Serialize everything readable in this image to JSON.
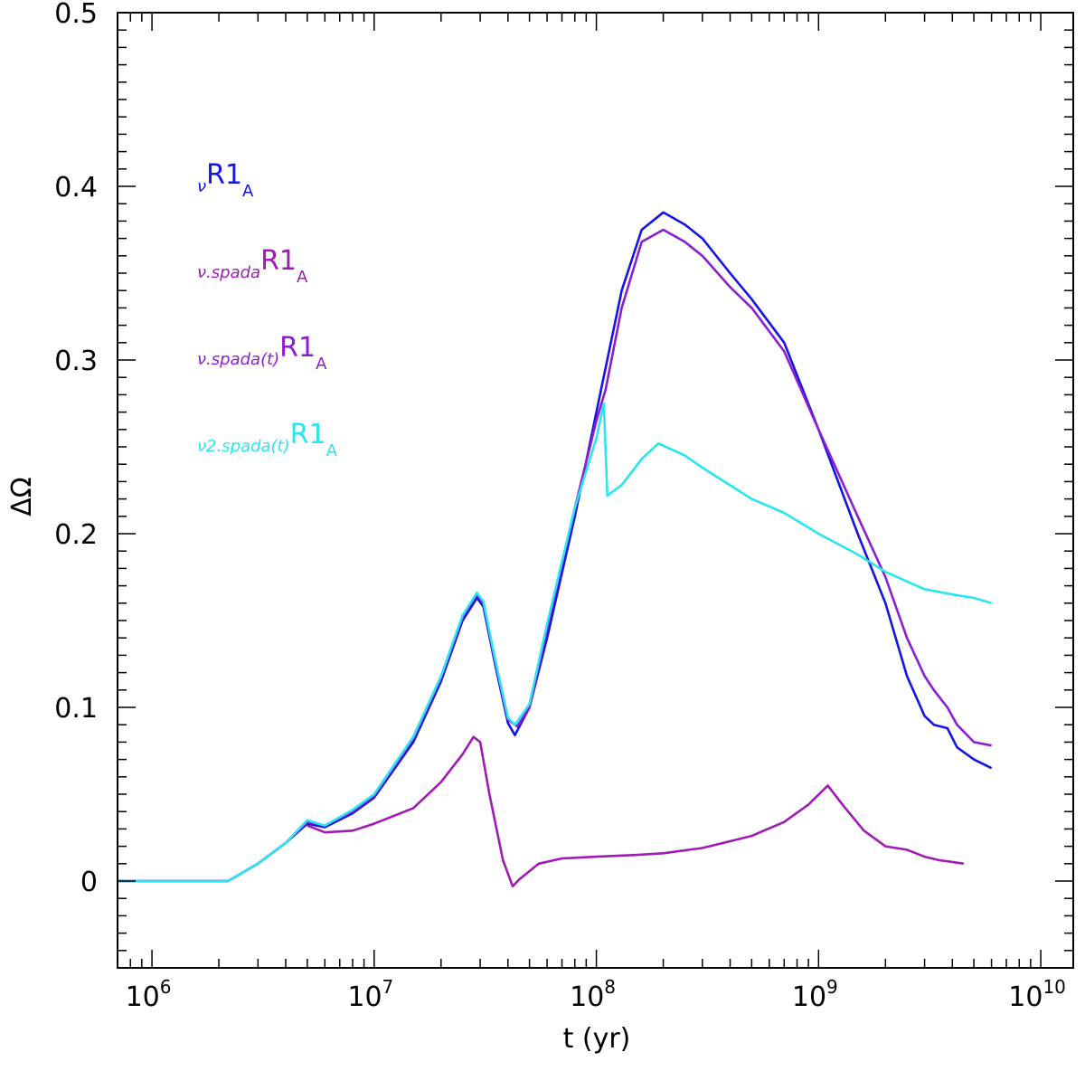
{
  "chart_data": {
    "type": "line",
    "title": "",
    "xlabel": "t  (yr)",
    "ylabel": "ΔΩ",
    "xscale": "log",
    "xlim": [
      700000,
      14000000000
    ],
    "ylim": [
      -0.05,
      0.5
    ],
    "x_ticks": [
      {
        "value": 1000000,
        "base": "10",
        "exp": "6"
      },
      {
        "value": 10000000,
        "base": "10",
        "exp": "7"
      },
      {
        "value": 100000000,
        "base": "10",
        "exp": "8"
      },
      {
        "value": 1000000000,
        "base": "10",
        "exp": "9"
      },
      {
        "value": 10000000000,
        "base": "10",
        "exp": "10"
      }
    ],
    "y_ticks": [
      {
        "value": 0,
        "label": "0"
      },
      {
        "value": 0.1,
        "label": "0.1"
      },
      {
        "value": 0.2,
        "label": "0.2"
      },
      {
        "value": 0.3,
        "label": "0.3"
      },
      {
        "value": 0.4,
        "label": "0.4"
      },
      {
        "value": 0.5,
        "label": "0.5"
      }
    ],
    "legend": [
      {
        "prefix": "ν",
        "main": "R1",
        "sub": "A",
        "color": "#1414e6"
      },
      {
        "prefix": "ν.spada",
        "main": "R1",
        "sub": "A",
        "color": "#a01ab4"
      },
      {
        "prefix": "ν.spada(t)",
        "main": "R1",
        "sub": "A",
        "color": "#8c1ed2"
      },
      {
        "prefix": "ν2.spada(t)",
        "main": "R1",
        "sub": "A",
        "color": "#28e6f0"
      }
    ],
    "series": [
      {
        "name": "ν R1_A",
        "color": "#1414e6",
        "x": [
          700000,
          2200000,
          3000000,
          4000000,
          5000000,
          6000000,
          8000000,
          10000000,
          15000000,
          20000000,
          25000000,
          29000000,
          31000000,
          35000000,
          40000000,
          43000000,
          50000000,
          60000000,
          80000000,
          100000000,
          130000000,
          160000000,
          200000000,
          250000000,
          300000000,
          400000000,
          500000000,
          700000000,
          1000000000,
          1500000000,
          2000000000,
          2500000000,
          3000000000,
          3300000000,
          3800000000,
          4200000000,
          5000000000,
          6000000000
        ],
        "y": [
          0,
          0,
          0.01,
          0.022,
          0.033,
          0.031,
          0.039,
          0.048,
          0.08,
          0.115,
          0.15,
          0.163,
          0.158,
          0.125,
          0.091,
          0.084,
          0.1,
          0.14,
          0.21,
          0.27,
          0.34,
          0.375,
          0.385,
          0.378,
          0.37,
          0.35,
          0.335,
          0.31,
          0.26,
          0.2,
          0.16,
          0.118,
          0.095,
          0.09,
          0.088,
          0.077,
          0.07,
          0.065
        ]
      },
      {
        "name": "ν.spada R1_A",
        "color": "#a01ab4",
        "x": [
          5000000,
          6000000,
          8000000,
          10000000,
          15000000,
          20000000,
          25000000,
          28000000,
          30000000,
          33000000,
          38000000,
          42000000,
          45000000,
          55000000,
          70000000,
          100000000,
          150000000,
          200000000,
          300000000,
          500000000,
          700000000,
          900000000,
          1100000000,
          1300000000,
          1600000000,
          2000000000,
          2500000000,
          3000000000,
          3500000000,
          4000000000,
          4500000000
        ],
        "y": [
          0.032,
          0.028,
          0.029,
          0.033,
          0.042,
          0.057,
          0.073,
          0.083,
          0.08,
          0.05,
          0.012,
          -0.003,
          0.001,
          0.01,
          0.013,
          0.014,
          0.015,
          0.016,
          0.019,
          0.026,
          0.034,
          0.044,
          0.055,
          0.043,
          0.029,
          0.02,
          0.018,
          0.014,
          0.012,
          0.011,
          0.01
        ]
      },
      {
        "name": "ν.spada(t) R1_A",
        "color": "#8c1ed2",
        "x": [
          700000,
          2200000,
          3000000,
          4000000,
          5000000,
          6000000,
          8000000,
          10000000,
          15000000,
          20000000,
          25000000,
          29000000,
          31000000,
          35000000,
          40000000,
          44000000,
          50000000,
          60000000,
          80000000,
          100000000,
          110000000,
          130000000,
          160000000,
          200000000,
          250000000,
          300000000,
          400000000,
          500000000,
          700000000,
          1000000000,
          1500000000,
          2000000000,
          2500000000,
          3000000000,
          3300000000,
          3800000000,
          4200000000,
          5000000000,
          6000000000
        ],
        "y": [
          0,
          0,
          0.01,
          0.022,
          0.034,
          0.032,
          0.04,
          0.049,
          0.082,
          0.117,
          0.152,
          0.165,
          0.16,
          0.127,
          0.093,
          0.089,
          0.1,
          0.145,
          0.215,
          0.265,
          0.283,
          0.33,
          0.368,
          0.375,
          0.368,
          0.36,
          0.342,
          0.33,
          0.305,
          0.26,
          0.21,
          0.175,
          0.14,
          0.118,
          0.11,
          0.1,
          0.09,
          0.08,
          0.078
        ]
      },
      {
        "name": "ν2.spada(t) R1_A",
        "color": "#28e6f0",
        "x": [
          700000,
          2200000,
          3000000,
          4000000,
          5000000,
          6000000,
          8000000,
          10000000,
          15000000,
          20000000,
          25000000,
          29000000,
          31000000,
          35000000,
          40000000,
          43000000,
          50000000,
          60000000,
          80000000,
          100000000,
          108000000,
          112000000,
          130000000,
          160000000,
          190000000,
          250000000,
          300000000,
          500000000,
          700000000,
          1000000000,
          1500000000,
          2000000000,
          3000000000,
          4000000000,
          5000000000,
          6000000000
        ],
        "y": [
          0,
          0,
          0.01,
          0.022,
          0.035,
          0.032,
          0.041,
          0.05,
          0.083,
          0.118,
          0.153,
          0.166,
          0.161,
          0.128,
          0.094,
          0.09,
          0.102,
          0.148,
          0.215,
          0.255,
          0.275,
          0.222,
          0.228,
          0.243,
          0.252,
          0.245,
          0.238,
          0.22,
          0.212,
          0.2,
          0.188,
          0.178,
          0.168,
          0.165,
          0.163,
          0.16
        ]
      }
    ]
  }
}
